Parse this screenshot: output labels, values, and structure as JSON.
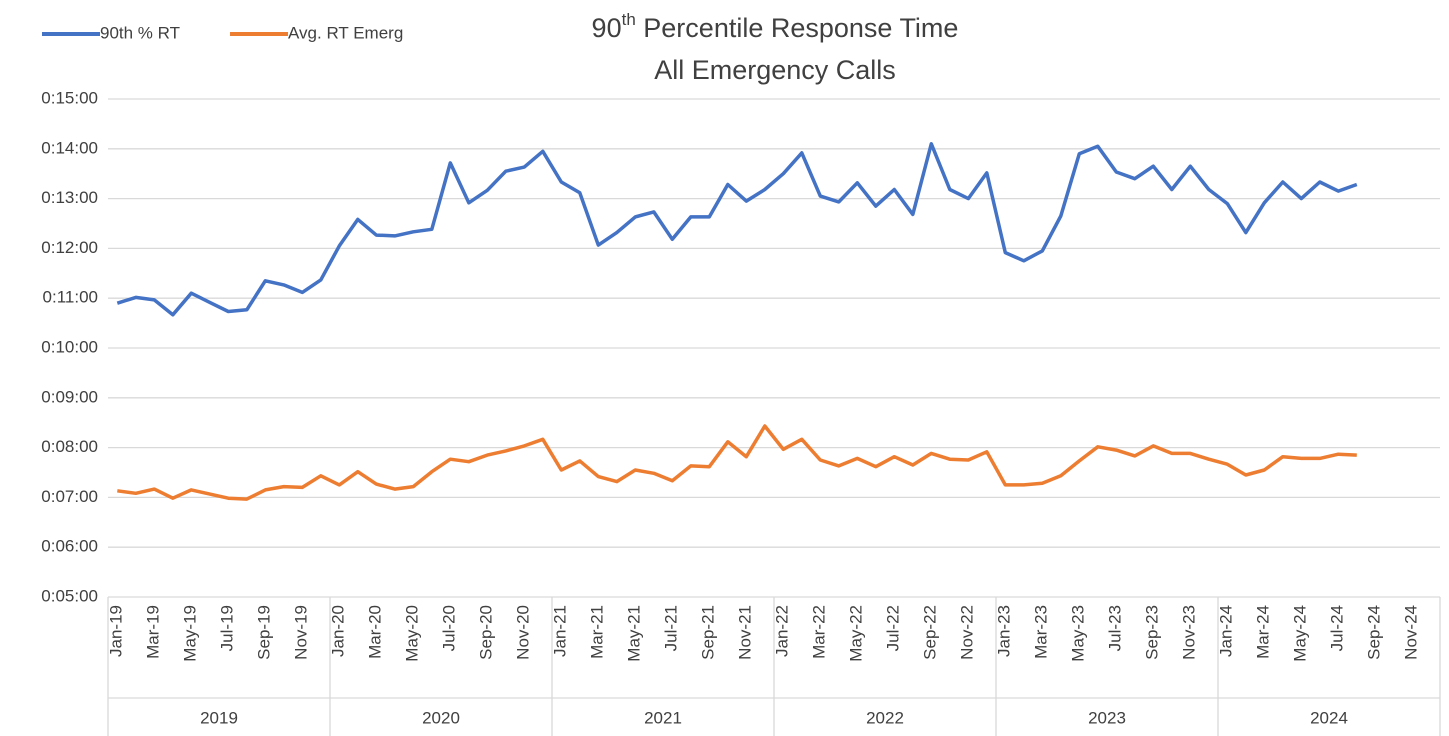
{
  "chart_data": {
    "type": "line",
    "title": [
      "90",
      "th",
      " Percentile Response Time"
    ],
    "subtitle": "All Emergency Calls",
    "categories": [
      "Jan-19",
      null,
      "Mar-19",
      null,
      "May-19",
      null,
      "Jul-19",
      null,
      "Sep-19",
      null,
      "Nov-19",
      null,
      "Jan-20",
      null,
      "Mar-20",
      null,
      "May-20",
      null,
      "Jul-20",
      null,
      "Sep-20",
      null,
      "Nov-20",
      null,
      "Jan-21",
      null,
      "Mar-21",
      null,
      "May-21",
      null,
      "Jul-21",
      null,
      "Sep-21",
      null,
      "Nov-21",
      null,
      "Jan-22",
      null,
      "Mar-22",
      null,
      "May-22",
      null,
      "Jul-22",
      null,
      "Sep-22",
      null,
      "Nov-22",
      null,
      "Jan-23",
      null,
      "Mar-23",
      null,
      "May-23",
      null,
      "Jul-23",
      null,
      "Sep-23",
      null,
      "Nov-23",
      null,
      "Jan-24",
      null,
      "Mar-24",
      null,
      "May-24",
      null,
      "Jul-24",
      null,
      "Sep-24",
      null,
      "Nov-24",
      null
    ],
    "groups": [
      "2019",
      "2020",
      "2021",
      "2022",
      "2023",
      "2024"
    ],
    "series": [
      {
        "name": "90th % RT",
        "color": "#4472c4",
        "values": [
          654,
          661,
          658,
          640,
          666,
          655,
          644,
          646,
          681,
          676,
          667,
          682,
          723,
          755,
          736,
          735,
          740,
          743,
          823,
          775,
          790,
          813,
          818,
          837,
          800,
          787,
          724,
          739,
          758,
          764,
          731,
          758,
          758,
          797,
          777,
          791,
          810,
          835,
          783,
          776,
          799,
          771,
          791,
          761,
          846,
          791,
          780,
          811,
          715,
          705,
          717,
          759,
          834,
          843,
          812,
          804,
          819,
          791,
          819,
          791,
          774,
          739,
          775,
          800,
          780,
          800,
          789,
          797,
          null,
          null,
          null,
          null
        ]
      },
      {
        "name": "Avg. RT Emerg",
        "color": "#ed7d31",
        "values": [
          428,
          425,
          430,
          419,
          429,
          424,
          419,
          418,
          429,
          433,
          432,
          446,
          435,
          451,
          436,
          430,
          433,
          451,
          466,
          463,
          471,
          476,
          482,
          490,
          453,
          464,
          445,
          439,
          453,
          449,
          440,
          458,
          457,
          487,
          469,
          506,
          478,
          490,
          465,
          458,
          467,
          457,
          469,
          459,
          473,
          466,
          465,
          475,
          435,
          435,
          437,
          446,
          464,
          481,
          477,
          470,
          482,
          473,
          473,
          466,
          460,
          447,
          453,
          469,
          467,
          467,
          472,
          471,
          null,
          null,
          null,
          null
        ]
      }
    ],
    "ylim": [
      300,
      900
    ],
    "yticks": [
      {
        "value": 300,
        "label": "0:05:00"
      },
      {
        "value": 360,
        "label": "0:06:00"
      },
      {
        "value": 420,
        "label": "0:07:00"
      },
      {
        "value": 480,
        "label": "0:08:00"
      },
      {
        "value": 540,
        "label": "0:09:00"
      },
      {
        "value": 600,
        "label": "0:10:00"
      },
      {
        "value": 660,
        "label": "0:11:00"
      },
      {
        "value": 720,
        "label": "0:12:00"
      },
      {
        "value": 780,
        "label": "0:13:00"
      },
      {
        "value": 840,
        "label": "0:14:00"
      },
      {
        "value": 900,
        "label": "0:15:00"
      }
    ],
    "grid": true,
    "legend": "top-left"
  }
}
